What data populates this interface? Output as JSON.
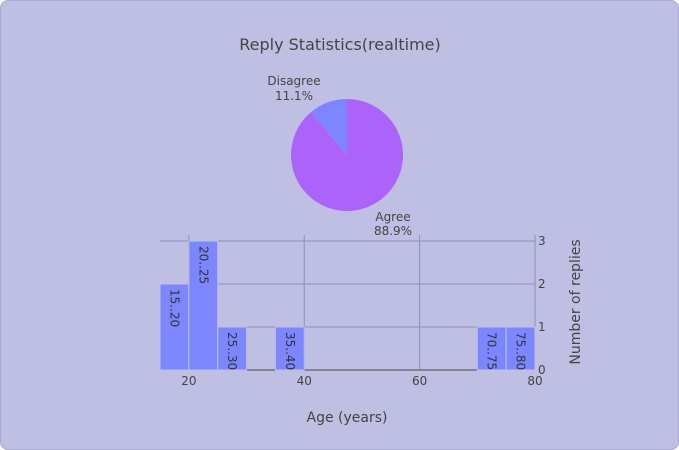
{
  "chart_data": [
    {
      "type": "pie",
      "title": "Reply Statistics(realtime)",
      "labels": [
        "Agree",
        "Disagree"
      ],
      "values": [
        88.9,
        11.1
      ],
      "percent_labels": [
        "88.9%",
        "11.1%"
      ],
      "colors": [
        "#ab63fa",
        "#7b86ff"
      ]
    },
    {
      "type": "bar",
      "xlabel": "Age (years)",
      "ylabel": "Number of replies",
      "xlim": [
        15,
        80
      ],
      "ylim": [
        0,
        3
      ],
      "xticks": [
        20,
        40,
        60,
        80
      ],
      "yticks": [
        0,
        1,
        2,
        3
      ],
      "bins": [
        {
          "label": "15..20",
          "start": 15,
          "end": 20,
          "value": 2
        },
        {
          "label": "20..25",
          "start": 20,
          "end": 25,
          "value": 3
        },
        {
          "label": "25..30",
          "start": 25,
          "end": 30,
          "value": 1
        },
        {
          "label": "35..40",
          "start": 35,
          "end": 40,
          "value": 1
        },
        {
          "label": "70..75",
          "start": 70,
          "end": 75,
          "value": 1
        },
        {
          "label": "75..80",
          "start": 75,
          "end": 80,
          "value": 1
        }
      ],
      "bar_color": "#7b86ff",
      "grid": true
    }
  ]
}
